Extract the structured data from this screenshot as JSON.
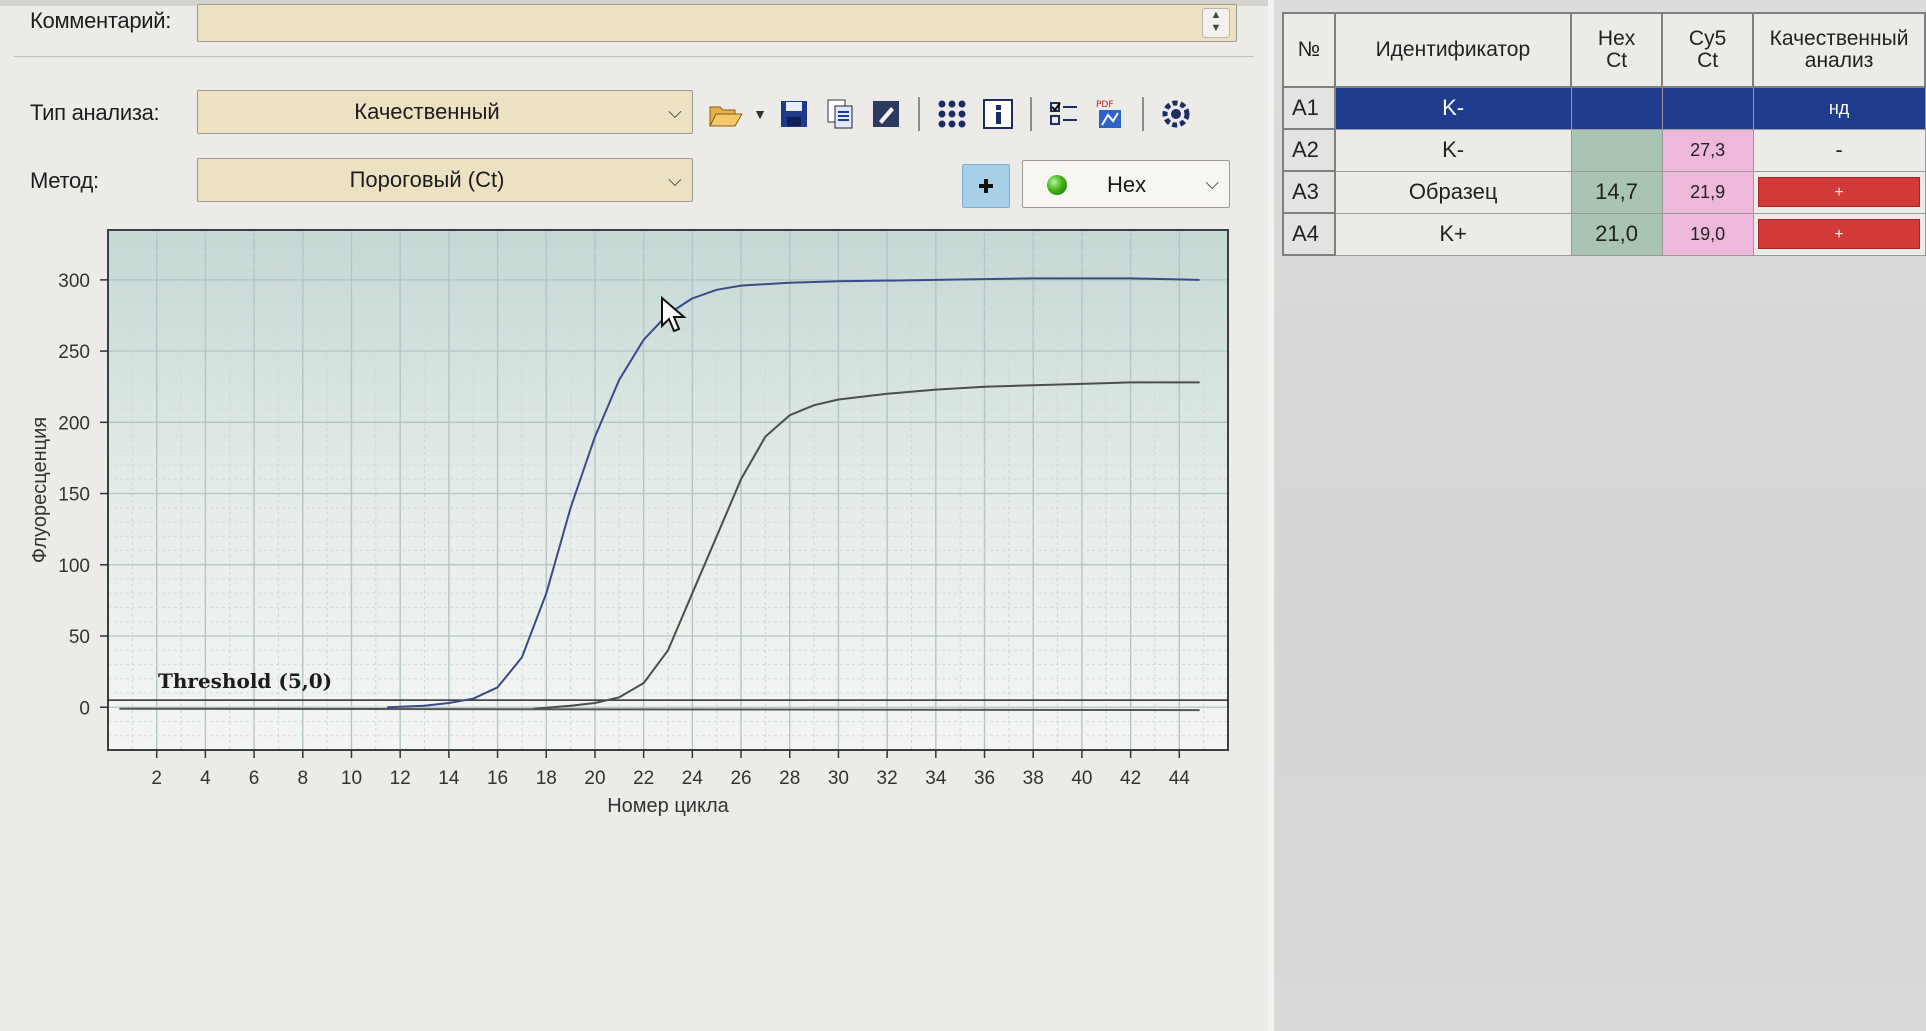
{
  "comment": {
    "label": "Комментарий:",
    "value": ""
  },
  "analysis_type": {
    "label": "Тип анализа:",
    "value": "Качественный"
  },
  "method": {
    "label": "Метод:",
    "value": "Пороговый (Ct)"
  },
  "toolbar": {
    "icons": [
      "open-folder-icon",
      "save-icon",
      "copy-icon",
      "edit-icon",
      "grid-icon",
      "info-icon",
      "checklist-icon",
      "report-icon",
      "settings-icon"
    ]
  },
  "channel": {
    "value": "Hex",
    "dot_color": "#43b319"
  },
  "chart_data": {
    "type": "line",
    "title": "",
    "xlabel": "Номер цикла",
    "ylabel": "Флуоресценция",
    "xlim": [
      0,
      46
    ],
    "ylim": [
      -30,
      335
    ],
    "x_ticks": [
      2,
      4,
      6,
      8,
      10,
      12,
      14,
      16,
      18,
      20,
      22,
      24,
      26,
      28,
      30,
      32,
      34,
      36,
      38,
      40,
      42,
      44
    ],
    "y_ticks": [
      0,
      50,
      100,
      150,
      200,
      250,
      300
    ],
    "grid": true,
    "threshold": {
      "label": "Threshold (5,0)",
      "value": 5.0
    },
    "series": [
      {
        "color": "#3b4a8a",
        "points": [
          [
            11.5,
            0
          ],
          [
            13,
            1
          ],
          [
            14,
            3
          ],
          [
            15,
            6
          ],
          [
            16,
            14
          ],
          [
            17,
            35
          ],
          [
            18,
            80
          ],
          [
            19,
            140
          ],
          [
            20,
            190
          ],
          [
            21,
            230
          ],
          [
            22,
            258
          ],
          [
            23,
            276
          ],
          [
            24,
            287
          ],
          [
            25,
            293
          ],
          [
            26,
            296
          ],
          [
            28,
            298
          ],
          [
            30,
            299
          ],
          [
            34,
            300
          ],
          [
            38,
            301
          ],
          [
            42,
            301
          ],
          [
            44.8,
            300
          ]
        ]
      },
      {
        "color": "#4a4f4a",
        "points": [
          [
            17.5,
            -1
          ],
          [
            19,
            1
          ],
          [
            20,
            3
          ],
          [
            21,
            7
          ],
          [
            22,
            17
          ],
          [
            23,
            40
          ],
          [
            24,
            80
          ],
          [
            25,
            120
          ],
          [
            26,
            160
          ],
          [
            27,
            190
          ],
          [
            28,
            205
          ],
          [
            29,
            212
          ],
          [
            30,
            216
          ],
          [
            32,
            220
          ],
          [
            34,
            223
          ],
          [
            36,
            225
          ],
          [
            38,
            226
          ],
          [
            40,
            227
          ],
          [
            42,
            228
          ],
          [
            44.8,
            228
          ]
        ]
      },
      {
        "color": "#555555",
        "points": [
          [
            0.5,
            -1
          ],
          [
            44.8,
            -2
          ]
        ]
      }
    ]
  },
  "results_table": {
    "headers": [
      "№",
      "Идентификатор",
      "Hex\nCt",
      "Cy5\nCt",
      "Качественный\nанализ"
    ],
    "rows": [
      {
        "well": "A1",
        "id": "K-",
        "hex": "",
        "cy5": "",
        "qual": "нд",
        "qual_positive": false
      },
      {
        "well": "A2",
        "id": "K-",
        "hex": "",
        "cy5": "27,3",
        "qual": "-",
        "qual_positive": false
      },
      {
        "well": "A3",
        "id": "Образец",
        "hex": "14,7",
        "cy5": "21,9",
        "qual": "+",
        "qual_positive": true
      },
      {
        "well": "A4",
        "id": "K+",
        "hex": "21,0",
        "cy5": "19,0",
        "qual": "+",
        "qual_positive": true
      }
    ]
  }
}
